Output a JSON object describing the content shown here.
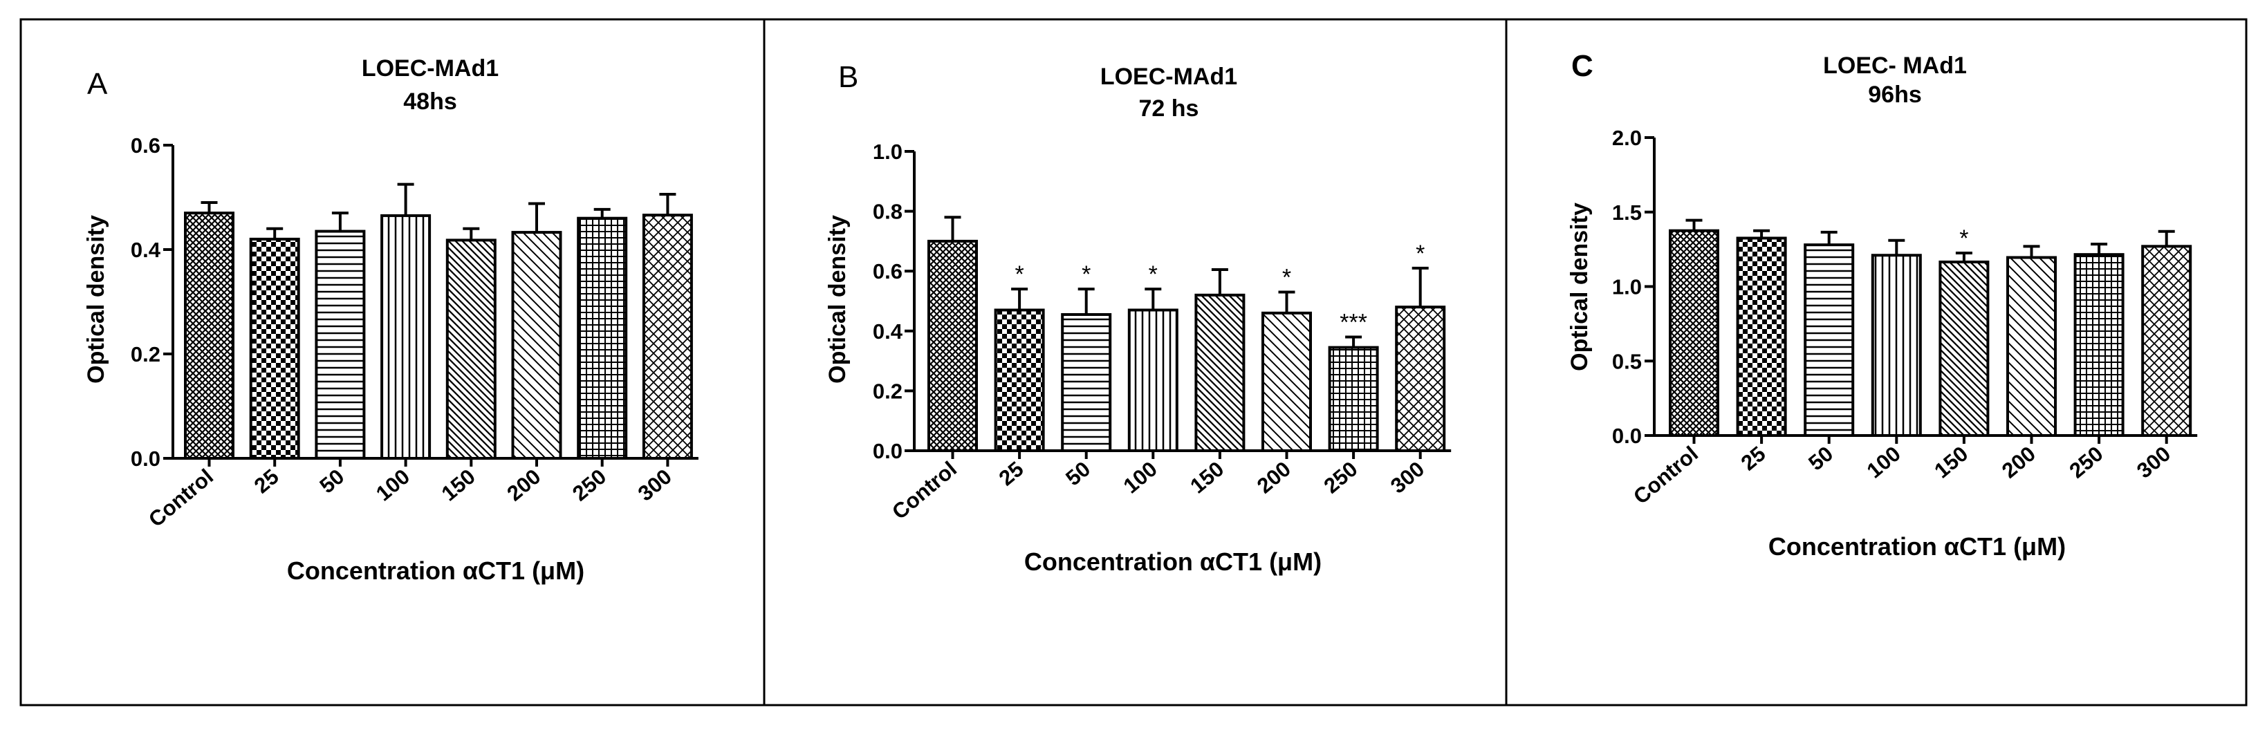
{
  "chart_data": [
    {
      "type": "bar",
      "panel_label": "A",
      "title": "LOEC-MAd1",
      "subtitle": "48hs",
      "xlabel": "Concentration αCT1 (μM)",
      "ylabel": "Optical density",
      "ylim": [
        0,
        0.6
      ],
      "yticks": [
        {
          "value": 0.0,
          "label": "0.0"
        },
        {
          "value": 0.2,
          "label": "0.2"
        },
        {
          "value": 0.4,
          "label": "0.4"
        },
        {
          "value": 0.6,
          "label": "0.6"
        }
      ],
      "categories": [
        "Control",
        "25",
        "50",
        "100",
        "150",
        "200",
        "250",
        "300"
      ],
      "values": [
        0.47,
        0.42,
        0.435,
        0.465,
        0.418,
        0.433,
        0.46,
        0.466
      ],
      "errors": [
        0.02,
        0.02,
        0.035,
        0.06,
        0.022,
        0.055,
        0.017,
        0.04
      ],
      "significance": [
        "",
        "",
        "",
        "",
        "",
        "",
        "",
        ""
      ],
      "patterns": [
        "crosshatch",
        "checker",
        "hlines",
        "vlines",
        "diagdown",
        "diagdown2",
        "grid",
        "diagcross"
      ]
    },
    {
      "type": "bar",
      "panel_label": "B",
      "title": "LOEC-MAd1",
      "subtitle": "72 hs",
      "xlabel": "Concentration αCT1 (μM)",
      "ylabel": "Optical density",
      "ylim": [
        0,
        1.0
      ],
      "yticks": [
        {
          "value": 0.0,
          "label": "0.0"
        },
        {
          "value": 0.2,
          "label": "0.2"
        },
        {
          "value": 0.4,
          "label": "0.4"
        },
        {
          "value": 0.6,
          "label": "0.6"
        },
        {
          "value": 0.8,
          "label": "0.8"
        },
        {
          "value": 1.0,
          "label": "1.0"
        }
      ],
      "categories": [
        "Control",
        "25",
        "50",
        "100",
        "150",
        "200",
        "250",
        "300"
      ],
      "values": [
        0.7,
        0.47,
        0.455,
        0.47,
        0.52,
        0.46,
        0.345,
        0.48
      ],
      "errors": [
        0.08,
        0.07,
        0.085,
        0.07,
        0.085,
        0.07,
        0.035,
        0.13
      ],
      "significance": [
        "",
        "*",
        "*",
        "*",
        "",
        "*",
        "***",
        "*"
      ],
      "patterns": [
        "crosshatch",
        "checker",
        "hlines",
        "vlines",
        "diagdown",
        "diagdown2",
        "grid",
        "diagcross"
      ]
    },
    {
      "type": "bar",
      "panel_label": "C",
      "title": "LOEC- MAd1",
      "subtitle": "96hs",
      "xlabel": "Concentration αCT1 (μM)",
      "ylabel": "Optical density",
      "ylim": [
        0,
        2.0
      ],
      "yticks": [
        {
          "value": 0.0,
          "label": "0.0"
        },
        {
          "value": 0.5,
          "label": "0.5"
        },
        {
          "value": 1.0,
          "label": "1.0"
        },
        {
          "value": 1.5,
          "label": "1.5"
        },
        {
          "value": 2.0,
          "label": "2.0"
        }
      ],
      "categories": [
        "Control",
        "25",
        "50",
        "100",
        "150",
        "200",
        "250",
        "300"
      ],
      "values": [
        1.375,
        1.325,
        1.28,
        1.21,
        1.165,
        1.195,
        1.215,
        1.27
      ],
      "errors": [
        0.07,
        0.05,
        0.085,
        0.1,
        0.06,
        0.075,
        0.07,
        0.1
      ],
      "significance": [
        "",
        "",
        "",
        "",
        "*",
        "",
        "",
        ""
      ],
      "patterns": [
        "crosshatch",
        "checker",
        "hlines",
        "vlines",
        "diagdown",
        "diagdown2",
        "grid",
        "diagcross"
      ]
    }
  ]
}
